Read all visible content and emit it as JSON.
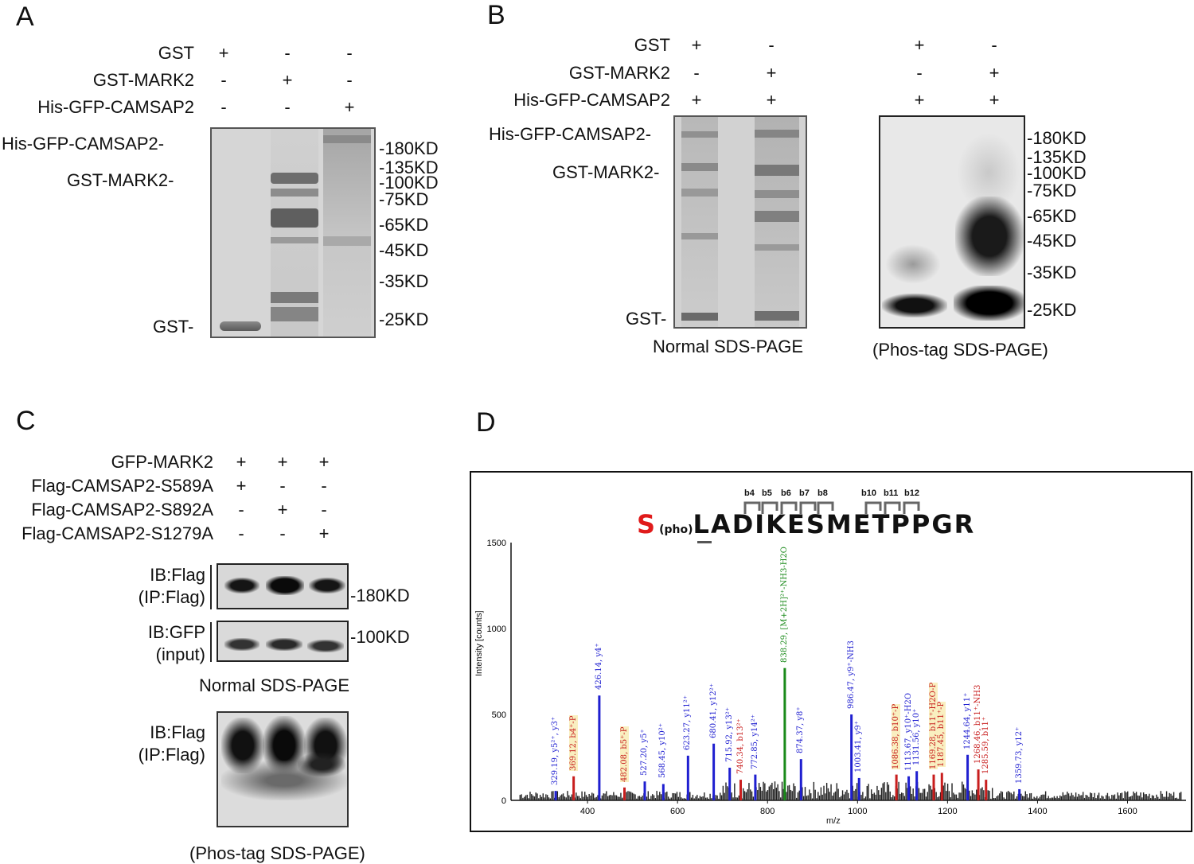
{
  "panels": {
    "A": {
      "letter": "A",
      "rows": [
        {
          "label": "GST",
          "signs": [
            "+",
            "-",
            "-"
          ]
        },
        {
          "label": "GST-MARK2",
          "signs": [
            "-",
            "+",
            "-"
          ]
        },
        {
          "label": "His-GFP-CAMSAP2",
          "signs": [
            "-",
            "-",
            "+"
          ]
        }
      ],
      "band_labels": [
        "His-GFP-CAMSAP2-",
        "GST-MARK2-",
        "GST-"
      ],
      "markers": [
        "-180KD",
        "-135KD",
        "-100KD",
        "-75KD",
        "-65KD",
        "-45KD",
        "-35KD",
        "-25KD"
      ]
    },
    "B": {
      "letter": "B",
      "rows": [
        {
          "label": "GST",
          "signs": [
            "+",
            "-",
            "+",
            "-"
          ]
        },
        {
          "label": "GST-MARK2",
          "signs": [
            "-",
            "+",
            "-",
            "+"
          ]
        },
        {
          "label": "His-GFP-CAMSAP2",
          "signs": [
            "+",
            "+",
            "+",
            "+"
          ]
        }
      ],
      "band_labels": [
        "His-GFP-CAMSAP2-",
        "GST-MARK2-",
        "GST-"
      ],
      "markers": [
        "-180KD",
        "-135KD",
        "-100KD",
        "-75KD",
        "-65KD",
        "-45KD",
        "-35KD",
        "-25KD"
      ],
      "caption_left": "Normal SDS-PAGE",
      "caption_right": "(Phos-tag SDS-PAGE)"
    },
    "C": {
      "letter": "C",
      "rows": [
        {
          "label": "GFP-MARK2",
          "signs": [
            "+",
            "+",
            "+"
          ]
        },
        {
          "label": "Flag-CAMSAP2-S589A",
          "signs": [
            "+",
            "-",
            "-"
          ]
        },
        {
          "label": "Flag-CAMSAP2-S892A",
          "signs": [
            "-",
            "+",
            "-"
          ]
        },
        {
          "label": "Flag-CAMSAP2-S1279A",
          "signs": [
            "-",
            "-",
            "+"
          ]
        }
      ],
      "blot1_label_1": "IB:Flag",
      "blot1_label_2": "(IP:Flag)",
      "blot1_marker": "-180KD",
      "blot2_label_1": "IB:GFP",
      "blot2_label_2": "(input)",
      "blot2_marker": "-100KD",
      "caption_mid": "Normal SDS-PAGE",
      "blot3_label_1": "IB:Flag",
      "blot3_label_2": "(IP:Flag)",
      "caption_bottom": "(Phos-tag SDS-PAGE)"
    },
    "D": {
      "letter": "D",
      "first_residue": "S",
      "modification": "(pho)",
      "sequence_rest": "LADIKESMETPPGR",
      "b_ions": [
        "b4",
        "b5",
        "b6",
        "b7",
        "b8",
        "b10",
        "b11",
        "b12"
      ],
      "ylabel": "Intensity [counts]",
      "xlabel": "m/z",
      "y_ticks": [
        "0",
        "500",
        "1000",
        "1500"
      ],
      "x_ticks": [
        "400",
        "600",
        "800",
        "1000",
        "1200",
        "1400",
        "1600"
      ]
    }
  },
  "chart_data": {
    "type": "bar",
    "xlabel": "m/z",
    "ylabel": "Intensity [counts]",
    "xlim": [
      230,
      1730
    ],
    "ylim": [
      0,
      1500
    ],
    "colors": {
      "y_ion": "#1f1fd0",
      "b_ion": "#c81e1e",
      "precursor": "#1a8a1a",
      "other": "#111111"
    },
    "peaks": [
      {
        "mz": 329.19,
        "intensity": 55,
        "label": "329.19, y5²⁺, y3⁺",
        "kind": "y",
        "hl": false
      },
      {
        "mz": 369.12,
        "intensity": 140,
        "label": "369.12, b4⁺-P",
        "kind": "b",
        "hl": true
      },
      {
        "mz": 426.14,
        "intensity": 610,
        "label": "426.14, y4⁺",
        "kind": "y",
        "hl": false
      },
      {
        "mz": 482.08,
        "intensity": 75,
        "label": "482.08, b5⁺-P",
        "kind": "b",
        "hl": true
      },
      {
        "mz": 527.2,
        "intensity": 110,
        "label": "527.20, y5⁺",
        "kind": "y",
        "hl": false
      },
      {
        "mz": 568.45,
        "intensity": 95,
        "label": "568.45, y10²⁺",
        "kind": "y",
        "hl": false
      },
      {
        "mz": 623.27,
        "intensity": 260,
        "label": "623.27, y11²⁺",
        "kind": "y",
        "hl": false
      },
      {
        "mz": 680.41,
        "intensity": 330,
        "label": "680.41, y12²⁺",
        "kind": "y",
        "hl": false
      },
      {
        "mz": 715.92,
        "intensity": 190,
        "label": "715.92, y13²⁺",
        "kind": "y",
        "hl": false
      },
      {
        "mz": 740.34,
        "intensity": 120,
        "label": "740.34, b13²⁺",
        "kind": "b",
        "hl": false
      },
      {
        "mz": 772.85,
        "intensity": 150,
        "label": "772.85, y14²⁺",
        "kind": "y",
        "hl": false
      },
      {
        "mz": 838.29,
        "intensity": 770,
        "label": "838.29, [M+2H]²⁺-NH3-H2O",
        "kind": "p",
        "hl": false
      },
      {
        "mz": 874.37,
        "intensity": 240,
        "label": "874.37, y8⁺",
        "kind": "y",
        "hl": false
      },
      {
        "mz": 986.47,
        "intensity": 500,
        "label": "986.47, y9⁺-NH3",
        "kind": "y",
        "hl": false
      },
      {
        "mz": 1003.41,
        "intensity": 130,
        "label": "1003.41, y9⁺",
        "kind": "y",
        "hl": false
      },
      {
        "mz": 1086.38,
        "intensity": 150,
        "label": "1086.38, b10⁺-P",
        "kind": "b",
        "hl": true
      },
      {
        "mz": 1113.67,
        "intensity": 140,
        "label": "1113.67, y10⁺-H2O",
        "kind": "y",
        "hl": false
      },
      {
        "mz": 1131.56,
        "intensity": 170,
        "label": "1131.56, y10⁺",
        "kind": "y",
        "hl": false
      },
      {
        "mz": 1169.28,
        "intensity": 150,
        "label": "1169.28, b11⁺-H2O-P",
        "kind": "b",
        "hl": true
      },
      {
        "mz": 1187.45,
        "intensity": 160,
        "label": "1187.45, b11⁺-P",
        "kind": "b",
        "hl": true
      },
      {
        "mz": 1244.64,
        "intensity": 265,
        "label": "1244.64, y11⁺",
        "kind": "y",
        "hl": false
      },
      {
        "mz": 1268.46,
        "intensity": 180,
        "label": "1268.46, b11⁺-NH3",
        "kind": "b",
        "hl": false
      },
      {
        "mz": 1285.59,
        "intensity": 120,
        "label": "1285.59, b11⁺",
        "kind": "b",
        "hl": false
      },
      {
        "mz": 1359.73,
        "intensity": 65,
        "label": "1359.73, y12⁺",
        "kind": "y",
        "hl": false
      }
    ]
  }
}
